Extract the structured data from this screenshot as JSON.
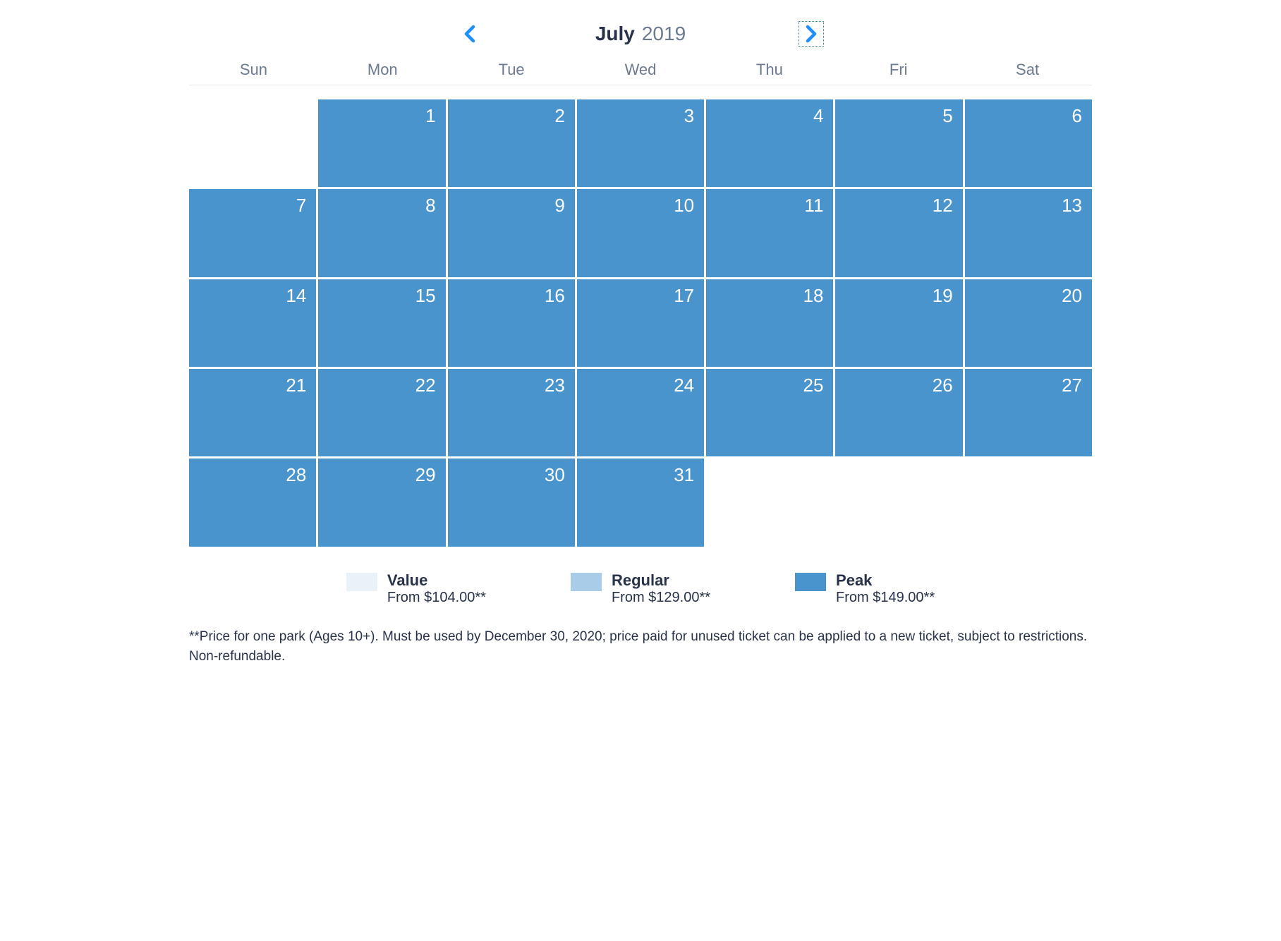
{
  "header": {
    "month": "July",
    "year": "2019"
  },
  "weekdays": [
    "Sun",
    "Mon",
    "Tue",
    "Wed",
    "Thu",
    "Fri",
    "Sat"
  ],
  "colors": {
    "peak": "#4a94cd",
    "regular": "#a9cde8",
    "value": "#e9f2f9",
    "accent": "#1f8fff",
    "text_dark": "#28334a",
    "text_muted": "#6b7a8f",
    "grid_gap": "#ffffff"
  },
  "calendar": {
    "start_weekday": 1,
    "days_in_month": 31,
    "day_tiers": {
      "1": "peak",
      "2": "peak",
      "3": "peak",
      "4": "peak",
      "5": "peak",
      "6": "peak",
      "7": "peak",
      "8": "peak",
      "9": "peak",
      "10": "peak",
      "11": "peak",
      "12": "peak",
      "13": "peak",
      "14": "peak",
      "15": "peak",
      "16": "peak",
      "17": "peak",
      "18": "peak",
      "19": "peak",
      "20": "peak",
      "21": "peak",
      "22": "peak",
      "23": "peak",
      "24": "peak",
      "25": "peak",
      "26": "peak",
      "27": "peak",
      "28": "peak",
      "29": "peak",
      "30": "peak",
      "31": "peak"
    }
  },
  "legend": [
    {
      "label": "Value",
      "price": "From $104.00**",
      "swatch": "#e9f2f9"
    },
    {
      "label": "Regular",
      "price": "From $129.00**",
      "swatch": "#a9cde8"
    },
    {
      "label": "Peak",
      "price": "From $149.00**",
      "swatch": "#4a94cd"
    }
  ],
  "disclaimer": "**Price for one park (Ages 10+). Must be used by December 30, 2020; price paid for unused ticket can be applied to a new ticket, subject to restrictions. Non-refundable."
}
